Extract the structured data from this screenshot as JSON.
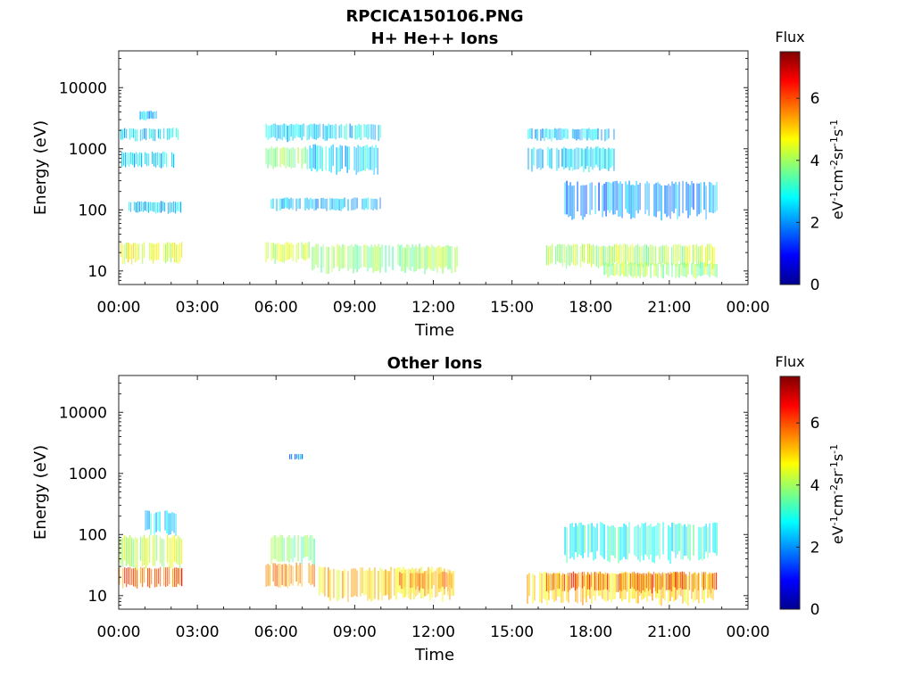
{
  "figure_title": "RPCICA150106.PNG",
  "chart_data": [
    {
      "type": "heatmap",
      "title": "H+ He++ Ions",
      "xlabel": "Time",
      "ylabel": "Energy (eV)",
      "x_ticks": [
        "00:00",
        "03:00",
        "06:00",
        "09:00",
        "12:00",
        "15:00",
        "18:00",
        "21:00",
        "00:00"
      ],
      "x_range_hours": [
        0,
        24
      ],
      "y_scale": "log",
      "y_ticks": [
        "10",
        "100",
        "1000",
        "10000"
      ],
      "y_range": [
        6,
        40000
      ],
      "colorbar": {
        "label": "Flux",
        "unit": "eV⁻¹cm⁻²sr⁻¹s⁻¹",
        "range": [
          0,
          7.5
        ],
        "ticks": [
          "0",
          "2",
          "4",
          "6"
        ]
      },
      "bands": [
        {
          "t": [
            0.0,
            2.4
          ],
          "e": [
            14,
            30
          ],
          "flux": 4.5
        },
        {
          "t": [
            5.6,
            7.3
          ],
          "e": [
            14,
            30
          ],
          "flux": 4.3
        },
        {
          "t": [
            7.3,
            12.9
          ],
          "e": [
            10,
            28
          ],
          "flux": 3.9
        },
        {
          "t": [
            16.3,
            22.8
          ],
          "e": [
            12,
            28
          ],
          "flux": 4.1
        },
        {
          "t": [
            18.5,
            22.8
          ],
          "e": [
            8,
            14
          ],
          "flux": 4.0
        },
        {
          "t": [
            0.0,
            2.3
          ],
          "e": [
            1400,
            2200
          ],
          "flux": 2.5
        },
        {
          "t": [
            0.1,
            2.2
          ],
          "e": [
            500,
            900
          ],
          "flux": 2.5
        },
        {
          "t": [
            0.3,
            2.4
          ],
          "e": [
            90,
            140
          ],
          "flux": 2.4
        },
        {
          "t": [
            0.8,
            1.5
          ],
          "e": [
            3000,
            4200
          ],
          "flux": 2.2
        },
        {
          "t": [
            5.6,
            10.0
          ],
          "e": [
            1400,
            2600
          ],
          "flux": 2.6
        },
        {
          "t": [
            5.6,
            7.2
          ],
          "e": [
            500,
            1100
          ],
          "flux": 3.8
        },
        {
          "t": [
            7.2,
            9.9
          ],
          "e": [
            420,
            1200
          ],
          "flux": 2.6
        },
        {
          "t": [
            5.8,
            10.0
          ],
          "e": [
            100,
            160
          ],
          "flux": 2.3
        },
        {
          "t": [
            15.6,
            18.9
          ],
          "e": [
            1400,
            2200
          ],
          "flux": 2.4
        },
        {
          "t": [
            15.6,
            18.9
          ],
          "e": [
            450,
            1100
          ],
          "flux": 2.6
        },
        {
          "t": [
            17.0,
            22.8
          ],
          "e": [
            80,
            300
          ],
          "flux": 2.0
        }
      ]
    },
    {
      "type": "heatmap",
      "title": "Other Ions",
      "xlabel": "Time",
      "ylabel": "Energy (eV)",
      "x_ticks": [
        "00:00",
        "03:00",
        "06:00",
        "09:00",
        "12:00",
        "15:00",
        "18:00",
        "21:00",
        "00:00"
      ],
      "x_range_hours": [
        0,
        24
      ],
      "y_scale": "log",
      "y_ticks": [
        "10",
        "100",
        "1000",
        "10000"
      ],
      "y_range": [
        6,
        40000
      ],
      "colorbar": {
        "label": "Flux",
        "unit": "eV⁻¹cm⁻²sr⁻¹s⁻¹",
        "range": [
          0,
          7.5
        ],
        "ticks": [
          "0",
          "2",
          "4",
          "6"
        ]
      },
      "bands": [
        {
          "t": [
            0.0,
            2.4
          ],
          "e": [
            14,
            30
          ],
          "flux": 5.8
        },
        {
          "t": [
            0.0,
            2.4
          ],
          "e": [
            30,
            100
          ],
          "flux": 4.2
        },
        {
          "t": [
            1.0,
            2.3
          ],
          "e": [
            100,
            250
          ],
          "flux": 2.6
        },
        {
          "t": [
            5.6,
            7.5
          ],
          "e": [
            14,
            35
          ],
          "flux": 5.6
        },
        {
          "t": [
            5.8,
            7.5
          ],
          "e": [
            35,
            100
          ],
          "flux": 3.6
        },
        {
          "t": [
            7.5,
            12.8
          ],
          "e": [
            9,
            30
          ],
          "flux": 5.0
        },
        {
          "t": [
            10.7,
            12.8
          ],
          "e": [
            13,
            25
          ],
          "flux": 5.6
        },
        {
          "t": [
            15.5,
            22.8
          ],
          "e": [
            8,
            25
          ],
          "flux": 5.0
        },
        {
          "t": [
            16.3,
            22.8
          ],
          "e": [
            12,
            25
          ],
          "flux": 5.8
        },
        {
          "t": [
            17.0,
            22.8
          ],
          "e": [
            40,
            160
          ],
          "flux": 3.0
        },
        {
          "t": [
            6.5,
            7.0
          ],
          "e": [
            1700,
            2100
          ],
          "flux": 2.0
        }
      ]
    }
  ]
}
